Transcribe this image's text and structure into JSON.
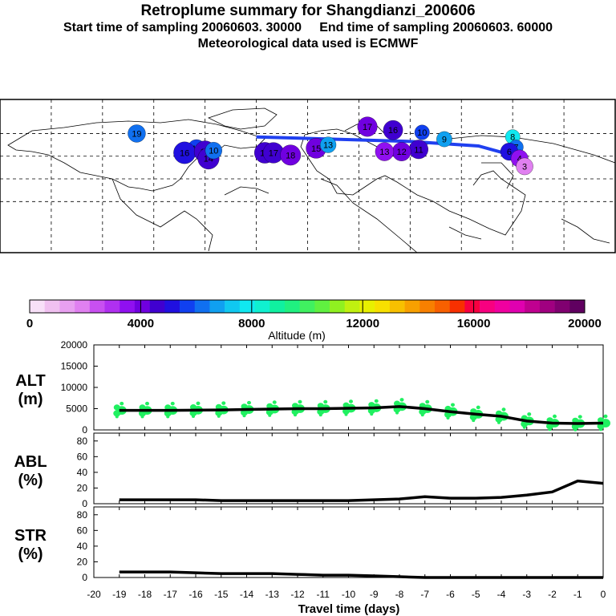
{
  "header": {
    "title": "Retroplume summary for Shangdianzi_200606",
    "sampling_line": "Start time of sampling 20060603. 30000     End time of sampling 20060603. 60000",
    "met_line": "Meteorological data used is ECMWF"
  },
  "map": {
    "plume_markers": [
      {
        "label": "19",
        "lon": -100,
        "lat": 60,
        "alt": 6000
      },
      {
        "label": "17",
        "lon": -65,
        "lat": 47,
        "alt": 5500
      },
      {
        "label": "16",
        "lon": -72,
        "lat": 43,
        "alt": 5000
      },
      {
        "label": "15",
        "lon": -60,
        "lat": 44,
        "alt": 4800
      },
      {
        "label": "14",
        "lon": -58,
        "lat": 38,
        "alt": 4500
      },
      {
        "label": "10",
        "lon": -55,
        "lat": 45,
        "alt": 6000
      },
      {
        "label": "14",
        "lon": -25,
        "lat": 43,
        "alt": 4500
      },
      {
        "label": "17",
        "lon": -20,
        "lat": 43,
        "alt": 4500
      },
      {
        "label": "18",
        "lon": -10,
        "lat": 41,
        "alt": 4000
      },
      {
        "label": "15",
        "lon": 5,
        "lat": 47,
        "alt": 4300
      },
      {
        "label": "13",
        "lon": 12,
        "lat": 50,
        "alt": 6500
      },
      {
        "label": "17",
        "lon": 35,
        "lat": 66,
        "alt": 4300
      },
      {
        "label": "16",
        "lon": 50,
        "lat": 63,
        "alt": 4400
      },
      {
        "label": "9",
        "lon": 80,
        "lat": 55,
        "alt": 6500
      },
      {
        "label": "11",
        "lon": 65,
        "lat": 46,
        "alt": 4500
      },
      {
        "label": "12",
        "lon": 55,
        "lat": 44,
        "alt": 3800
      },
      {
        "label": "13",
        "lon": 45,
        "lat": 44,
        "alt": 3600
      },
      {
        "label": "10",
        "lon": 67,
        "lat": 61,
        "alt": 5800
      },
      {
        "label": "8",
        "lon": 120,
        "lat": 57,
        "alt": 7800
      },
      {
        "label": "7",
        "lon": 122,
        "lat": 48,
        "alt": 6000
      },
      {
        "label": "6",
        "lon": 118,
        "lat": 44,
        "alt": 5000
      },
      {
        "label": "4",
        "lon": 124,
        "lat": 38,
        "alt": 3500
      },
      {
        "label": "3",
        "lon": 127,
        "lat": 31,
        "alt": 2000
      }
    ],
    "trajectory_label": "mean path"
  },
  "colorbar": {
    "ticks": [
      "0",
      "4000",
      "8000",
      "12000",
      "16000",
      "20000"
    ],
    "title": "Altitude (m)",
    "colors": [
      "#f8e0f8",
      "#f0c0f0",
      "#e8a0f0",
      "#e080f0",
      "#c850f0",
      "#b030f0",
      "#9010f0",
      "#7000e0",
      "#4000d0",
      "#2010e0",
      "#1040f0",
      "#1070f0",
      "#10a0f0",
      "#10c8f0",
      "#10e8f0",
      "#10f0d0",
      "#10f0a0",
      "#20f080",
      "#40f060",
      "#60f040",
      "#90f020",
      "#c0f010",
      "#e8f000",
      "#f8e000",
      "#f8c000",
      "#f8a000",
      "#f88000",
      "#f86000",
      "#f83000",
      "#f80040",
      "#f80080",
      "#f000a0",
      "#e000b0",
      "#c00090",
      "#a00080",
      "#800070",
      "#600060"
    ]
  },
  "chart_data": [
    {
      "type": "line",
      "name": "ALT",
      "ylabel": "ALT\n(m)",
      "ylim": [
        0,
        20000
      ],
      "yticks": [
        "0",
        "5000",
        "10000",
        "15000",
        "20000"
      ],
      "x": [
        -19,
        -18,
        -17,
        -16,
        -15,
        -14,
        -13,
        -12,
        -11,
        -10,
        -9,
        -8,
        -7,
        -6,
        -5,
        -4,
        -3,
        -2,
        -1,
        0
      ],
      "values": [
        4600,
        4600,
        4600,
        4650,
        4700,
        4800,
        4900,
        5000,
        5000,
        5100,
        5200,
        5500,
        5000,
        4300,
        3700,
        3200,
        2100,
        1600,
        1500,
        1600
      ],
      "scatter_color": "#20f060"
    },
    {
      "type": "line",
      "name": "ABL",
      "ylabel": "ABL\n(%)",
      "ylim": [
        0,
        90
      ],
      "yticks": [
        "0",
        "20",
        "40",
        "60",
        "80"
      ],
      "x": [
        -19,
        -18,
        -17,
        -16,
        -15,
        -14,
        -13,
        -12,
        -11,
        -10,
        -9,
        -8,
        -7,
        -6,
        -5,
        -4,
        -3,
        -2,
        -1,
        0
      ],
      "values": [
        5,
        5,
        5,
        5,
        4,
        4,
        4,
        4,
        4,
        4,
        5,
        6,
        9,
        7,
        7,
        8,
        11,
        15,
        29,
        26
      ]
    },
    {
      "type": "line",
      "name": "STR",
      "ylabel": "STR\n(%)",
      "ylim": [
        0,
        90
      ],
      "yticks": [
        "0",
        "20",
        "40",
        "60",
        "80"
      ],
      "x": [
        -19,
        -18,
        -17,
        -16,
        -15,
        -14,
        -13,
        -12,
        -11,
        -10,
        -9,
        -8,
        -7,
        -6,
        -5,
        -4,
        -3,
        -2,
        -1,
        0
      ],
      "values": [
        7,
        7,
        7,
        6,
        5,
        5,
        5,
        4,
        3,
        3,
        2,
        1,
        0,
        0,
        0,
        0,
        0,
        0,
        0,
        0
      ]
    }
  ],
  "xaxis": {
    "ticks": [
      "-20",
      "-19",
      "-18",
      "-17",
      "-16",
      "-15",
      "-14",
      "-13",
      "-12",
      "-11",
      "-10",
      "-9",
      "-8",
      "-7",
      "-6",
      "-5",
      "-4",
      "-3",
      "-2",
      "-1",
      "0"
    ],
    "label": "Travel time (days)"
  }
}
